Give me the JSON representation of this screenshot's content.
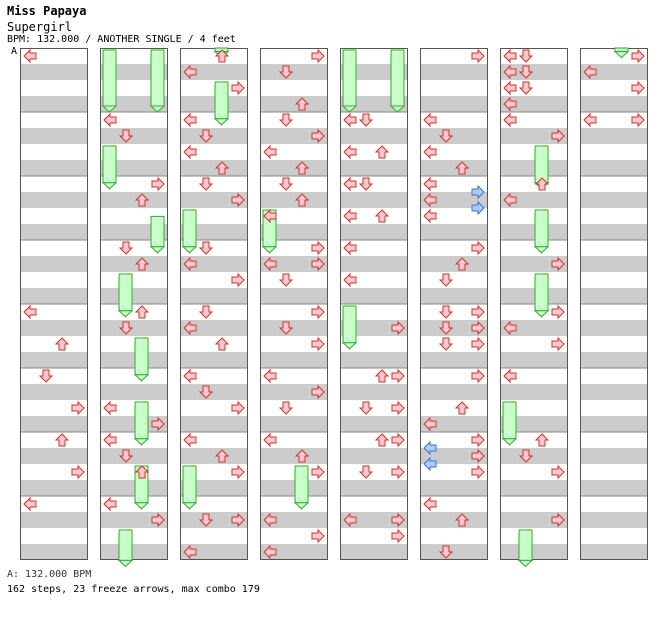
{
  "song": {
    "title": "Miss Papaya",
    "subtitle": "Supergirl",
    "info": "BPM: 132.000 / ANOTHER SINGLE / 4 feet"
  },
  "bpm_marker": {
    "label": "A"
  },
  "footer": {
    "bpm": "A: 132.000 BPM",
    "stats": "162 steps, 23 freeze arrows, max combo 179"
  },
  "colors": {
    "arrow_fill": "#ffc8c8",
    "arrow_stroke": "#cc3333",
    "blue_fill": "#aaccff",
    "blue_stroke": "#3377cc",
    "freeze_fill": "#c8ffc8",
    "freeze_stroke": "#33aa33",
    "stripe": "#cccccc"
  },
  "chart_data": {
    "type": "step-chart",
    "lanes": [
      "left",
      "down",
      "up",
      "right"
    ],
    "measures_per_column": 8,
    "columns": 8,
    "beats_per_measure": 4,
    "notes": [
      {
        "c": 0,
        "m": 0,
        "lane": "left",
        "b": 0
      },
      {
        "c": 0,
        "m": 4,
        "lane": "left",
        "b": 0
      },
      {
        "c": 0,
        "m": 4,
        "lane": "up",
        "b": 2
      },
      {
        "c": 0,
        "m": 5,
        "lane": "down",
        "b": 0
      },
      {
        "c": 0,
        "m": 5,
        "lane": "right",
        "b": 2
      },
      {
        "c": 0,
        "m": 6,
        "lane": "up",
        "b": 0
      },
      {
        "c": 0,
        "m": 6,
        "lane": "right",
        "b": 2
      },
      {
        "c": 0,
        "m": 7,
        "lane": "left",
        "b": 0
      },
      {
        "c": 1,
        "m": 1,
        "lane": "left",
        "b": 0
      },
      {
        "c": 1,
        "m": 1,
        "lane": "down",
        "b": 1
      },
      {
        "c": 1,
        "m": 2,
        "lane": "right",
        "b": 0
      },
      {
        "c": 1,
        "m": 2,
        "lane": "up",
        "b": 1
      },
      {
        "c": 1,
        "m": 3,
        "lane": "down",
        "b": 0
      },
      {
        "c": 1,
        "m": 3,
        "lane": "up",
        "b": 1
      },
      {
        "c": 1,
        "m": 4,
        "lane": "up",
        "b": 0
      },
      {
        "c": 1,
        "m": 4,
        "lane": "down",
        "b": 1
      },
      {
        "c": 1,
        "m": 5,
        "lane": "left",
        "b": 2
      },
      {
        "c": 1,
        "m": 5,
        "lane": "right",
        "b": 3
      },
      {
        "c": 1,
        "m": 6,
        "lane": "left",
        "b": 0
      },
      {
        "c": 1,
        "m": 6,
        "lane": "down",
        "b": 1
      },
      {
        "c": 1,
        "m": 6,
        "lane": "up",
        "b": 2
      },
      {
        "c": 1,
        "m": 7,
        "lane": "left",
        "b": 0
      },
      {
        "c": 1,
        "m": 7,
        "lane": "right",
        "b": 1
      },
      {
        "c": 2,
        "m": 0,
        "lane": "left",
        "b": 1
      },
      {
        "c": 2,
        "m": 0,
        "lane": "up",
        "b": 0
      },
      {
        "c": 2,
        "m": 0,
        "lane": "right",
        "b": 2
      },
      {
        "c": 2,
        "m": 1,
        "lane": "left",
        "b": 0
      },
      {
        "c": 2,
        "m": 1,
        "lane": "down",
        "b": 1
      },
      {
        "c": 2,
        "m": 1,
        "lane": "left",
        "b": 2
      },
      {
        "c": 2,
        "m": 1,
        "lane": "up",
        "b": 3
      },
      {
        "c": 2,
        "m": 2,
        "lane": "down",
        "b": 0
      },
      {
        "c": 2,
        "m": 2,
        "lane": "right",
        "b": 1
      },
      {
        "c": 2,
        "m": 3,
        "lane": "down",
        "b": 0
      },
      {
        "c": 2,
        "m": 3,
        "lane": "left",
        "b": 1
      },
      {
        "c": 2,
        "m": 3,
        "lane": "right",
        "b": 2
      },
      {
        "c": 2,
        "m": 4,
        "lane": "down",
        "b": 0
      },
      {
        "c": 2,
        "m": 4,
        "lane": "left",
        "b": 1
      },
      {
        "c": 2,
        "m": 4,
        "lane": "up",
        "b": 2
      },
      {
        "c": 2,
        "m": 5,
        "lane": "left",
        "b": 0
      },
      {
        "c": 2,
        "m": 5,
        "lane": "down",
        "b": 1
      },
      {
        "c": 2,
        "m": 5,
        "lane": "right",
        "b": 2
      },
      {
        "c": 2,
        "m": 6,
        "lane": "left",
        "b": 0
      },
      {
        "c": 2,
        "m": 6,
        "lane": "up",
        "b": 1
      },
      {
        "c": 2,
        "m": 6,
        "lane": "right",
        "b": 2
      },
      {
        "c": 2,
        "m": 7,
        "lane": "right",
        "b": 1
      },
      {
        "c": 2,
        "m": 7,
        "lane": "down",
        "b": 1
      },
      {
        "c": 2,
        "m": 7,
        "lane": "left",
        "b": 3
      },
      {
        "c": 3,
        "m": 0,
        "lane": "right",
        "b": 0
      },
      {
        "c": 3,
        "m": 0,
        "lane": "down",
        "b": 1
      },
      {
        "c": 3,
        "m": 0,
        "lane": "up",
        "b": 3
      },
      {
        "c": 3,
        "m": 1,
        "lane": "down",
        "b": 0
      },
      {
        "c": 3,
        "m": 1,
        "lane": "right",
        "b": 1
      },
      {
        "c": 3,
        "m": 1,
        "lane": "left",
        "b": 2
      },
      {
        "c": 3,
        "m": 1,
        "lane": "up",
        "b": 3
      },
      {
        "c": 3,
        "m": 2,
        "lane": "down",
        "b": 0
      },
      {
        "c": 3,
        "m": 2,
        "lane": "up",
        "b": 1
      },
      {
        "c": 3,
        "m": 2,
        "lane": "left",
        "b": 2
      },
      {
        "c": 3,
        "m": 3,
        "lane": "right",
        "b": 0
      },
      {
        "c": 3,
        "m": 3,
        "lane": "left",
        "b": 1
      },
      {
        "c": 3,
        "m": 3,
        "lane": "right",
        "b": 1
      },
      {
        "c": 3,
        "m": 3,
        "lane": "down",
        "b": 2
      },
      {
        "c": 3,
        "m": 4,
        "lane": "right",
        "b": 0
      },
      {
        "c": 3,
        "m": 4,
        "lane": "down",
        "b": 1
      },
      {
        "c": 3,
        "m": 4,
        "lane": "right",
        "b": 2
      },
      {
        "c": 3,
        "m": 5,
        "lane": "left",
        "b": 0
      },
      {
        "c": 3,
        "m": 5,
        "lane": "right",
        "b": 1
      },
      {
        "c": 3,
        "m": 5,
        "lane": "down",
        "b": 2
      },
      {
        "c": 3,
        "m": 6,
        "lane": "left",
        "b": 0
      },
      {
        "c": 3,
        "m": 6,
        "lane": "up",
        "b": 1
      },
      {
        "c": 3,
        "m": 6,
        "lane": "right",
        "b": 2
      },
      {
        "c": 3,
        "m": 7,
        "lane": "left",
        "b": 1
      },
      {
        "c": 3,
        "m": 7,
        "lane": "right",
        "b": 2
      },
      {
        "c": 3,
        "m": 7,
        "lane": "left",
        "b": 3
      },
      {
        "c": 4,
        "m": 1,
        "lane": "left",
        "b": 0
      },
      {
        "c": 4,
        "m": 1,
        "lane": "down",
        "b": 0
      },
      {
        "c": 4,
        "m": 1,
        "lane": "left",
        "b": 2
      },
      {
        "c": 4,
        "m": 1,
        "lane": "up",
        "b": 2
      },
      {
        "c": 4,
        "m": 2,
        "lane": "left",
        "b": 0
      },
      {
        "c": 4,
        "m": 2,
        "lane": "down",
        "b": 0
      },
      {
        "c": 4,
        "m": 2,
        "lane": "left",
        "b": 2
      },
      {
        "c": 4,
        "m": 2,
        "lane": "up",
        "b": 2
      },
      {
        "c": 4,
        "m": 3,
        "lane": "left",
        "b": 0
      },
      {
        "c": 4,
        "m": 3,
        "lane": "left",
        "b": 2
      },
      {
        "c": 4,
        "m": 4,
        "lane": "right",
        "b": 1
      },
      {
        "c": 4,
        "m": 5,
        "lane": "up",
        "b": 0
      },
      {
        "c": 4,
        "m": 5,
        "lane": "right",
        "b": 0
      },
      {
        "c": 4,
        "m": 5,
        "lane": "down",
        "b": 2
      },
      {
        "c": 4,
        "m": 5,
        "lane": "right",
        "b": 2
      },
      {
        "c": 4,
        "m": 6,
        "lane": "up",
        "b": 0
      },
      {
        "c": 4,
        "m": 6,
        "lane": "right",
        "b": 0
      },
      {
        "c": 4,
        "m": 6,
        "lane": "down",
        "b": 2
      },
      {
        "c": 4,
        "m": 6,
        "lane": "right",
        "b": 2
      },
      {
        "c": 4,
        "m": 7,
        "lane": "left",
        "b": 1
      },
      {
        "c": 4,
        "m": 7,
        "lane": "right",
        "b": 1
      },
      {
        "c": 4,
        "m": 7,
        "lane": "right",
        "b": 2
      },
      {
        "c": 5,
        "m": 0,
        "lane": "right",
        "b": 0
      },
      {
        "c": 5,
        "m": 1,
        "lane": "left",
        "b": 0
      },
      {
        "c": 5,
        "m": 1,
        "lane": "down",
        "b": 1
      },
      {
        "c": 5,
        "m": 1,
        "lane": "left",
        "b": 2
      },
      {
        "c": 5,
        "m": 1,
        "lane": "up",
        "b": 3
      },
      {
        "c": 5,
        "m": 2,
        "lane": "left",
        "b": 0
      },
      {
        "c": 5,
        "m": 2,
        "lane": "left",
        "b": 1
      },
      {
        "c": 5,
        "m": 2,
        "lane": "left",
        "b": 2
      },
      {
        "c": 5,
        "m": 3,
        "lane": "right",
        "b": 0
      },
      {
        "c": 5,
        "m": 3,
        "lane": "up",
        "b": 1
      },
      {
        "c": 5,
        "m": 3,
        "lane": "down",
        "b": 2
      },
      {
        "c": 5,
        "m": 4,
        "lane": "down",
        "b": 0
      },
      {
        "c": 5,
        "m": 4,
        "lane": "right",
        "b": 0
      },
      {
        "c": 5,
        "m": 4,
        "lane": "down",
        "b": 1
      },
      {
        "c": 5,
        "m": 4,
        "lane": "right",
        "b": 1
      },
      {
        "c": 5,
        "m": 4,
        "lane": "down",
        "b": 2
      },
      {
        "c": 5,
        "m": 4,
        "lane": "right",
        "b": 2
      },
      {
        "c": 5,
        "m": 5,
        "lane": "right",
        "b": 0
      },
      {
        "c": 5,
        "m": 5,
        "lane": "up",
        "b": 2
      },
      {
        "c": 5,
        "m": 5,
        "lane": "left",
        "b": 3
      },
      {
        "c": 5,
        "m": 6,
        "lane": "right",
        "b": 0
      },
      {
        "c": 5,
        "m": 6,
        "lane": "right",
        "b": 1
      },
      {
        "c": 5,
        "m": 6,
        "lane": "right",
        "b": 2
      },
      {
        "c": 5,
        "m": 7,
        "lane": "left",
        "b": 0
      },
      {
        "c": 5,
        "m": 7,
        "lane": "up",
        "b": 1
      },
      {
        "c": 5,
        "m": 7,
        "lane": "down",
        "b": 3
      },
      {
        "c": 6,
        "m": 0,
        "lane": "left",
        "b": 0
      },
      {
        "c": 6,
        "m": 0,
        "lane": "down",
        "b": 0
      },
      {
        "c": 6,
        "m": 0,
        "lane": "left",
        "b": 1
      },
      {
        "c": 6,
        "m": 0,
        "lane": "down",
        "b": 1
      },
      {
        "c": 6,
        "m": 0,
        "lane": "left",
        "b": 2
      },
      {
        "c": 6,
        "m": 0,
        "lane": "down",
        "b": 2
      },
      {
        "c": 6,
        "m": 0,
        "lane": "left",
        "b": 3
      },
      {
        "c": 6,
        "m": 1,
        "lane": "left",
        "b": 0
      },
      {
        "c": 6,
        "m": 1,
        "lane": "right",
        "b": 1
      },
      {
        "c": 6,
        "m": 2,
        "lane": "up",
        "b": 0
      },
      {
        "c": 6,
        "m": 2,
        "lane": "left",
        "b": 1
      },
      {
        "c": 6,
        "m": 3,
        "lane": "right",
        "b": 1
      },
      {
        "c": 6,
        "m": 4,
        "lane": "right",
        "b": 0
      },
      {
        "c": 6,
        "m": 4,
        "lane": "left",
        "b": 1
      },
      {
        "c": 6,
        "m": 4,
        "lane": "right",
        "b": 2
      },
      {
        "c": 6,
        "m": 5,
        "lane": "left",
        "b": 0
      },
      {
        "c": 6,
        "m": 6,
        "lane": "up",
        "b": 0
      },
      {
        "c": 6,
        "m": 6,
        "lane": "down",
        "b": 1
      },
      {
        "c": 6,
        "m": 6,
        "lane": "right",
        "b": 2
      },
      {
        "c": 6,
        "m": 7,
        "lane": "right",
        "b": 1
      }
    ],
    "blue_notes": [
      {
        "c": 5,
        "m": 2,
        "lane": "right",
        "b": 0.5
      },
      {
        "c": 5,
        "m": 2,
        "lane": "right",
        "b": 1.5
      },
      {
        "c": 5,
        "m": 6,
        "lane": "left",
        "b": 0.5
      },
      {
        "c": 5,
        "m": 6,
        "lane": "left",
        "b": 1.5
      }
    ],
    "freezes": [
      {
        "c": 1,
        "lane": "left",
        "start": 0.0,
        "end": 1.0
      },
      {
        "c": 1,
        "lane": "right",
        "start": 0.0,
        "end": 1.0
      },
      {
        "c": 1,
        "lane": "left",
        "start": 1.5,
        "end": 2.2
      },
      {
        "c": 1,
        "lane": "right",
        "start": 2.6,
        "end": 3.2
      },
      {
        "c": 1,
        "lane": "down",
        "start": 3.5,
        "end": 4.2
      },
      {
        "c": 1,
        "lane": "up",
        "start": 4.5,
        "end": 5.2
      },
      {
        "c": 1,
        "lane": "up",
        "start": 5.5,
        "end": 6.2
      },
      {
        "c": 1,
        "lane": "up",
        "start": 6.5,
        "end": 7.2
      },
      {
        "c": 1,
        "lane": "down",
        "start": 7.5,
        "end": 8.1
      },
      {
        "c": 2,
        "lane": "up",
        "start": -0.1,
        "end": 0.15
      },
      {
        "c": 2,
        "lane": "up",
        "start": 0.5,
        "end": 1.2
      },
      {
        "c": 2,
        "lane": "left",
        "start": 2.5,
        "end": 3.2
      },
      {
        "c": 2,
        "lane": "left",
        "start": 6.5,
        "end": 7.2
      },
      {
        "c": 3,
        "lane": "left",
        "start": 2.5,
        "end": 3.2
      },
      {
        "c": 3,
        "lane": "up",
        "start": 6.5,
        "end": 7.2
      },
      {
        "c": 4,
        "lane": "left",
        "start": 0.0,
        "end": 1.0
      },
      {
        "c": 4,
        "lane": "right",
        "start": 0.0,
        "end": 1.0
      },
      {
        "c": 4,
        "lane": "left",
        "start": 4.0,
        "end": 4.7
      },
      {
        "c": 6,
        "lane": "up",
        "start": 1.5,
        "end": 2.2
      },
      {
        "c": 6,
        "lane": "up",
        "start": 2.5,
        "end": 3.2
      },
      {
        "c": 6,
        "lane": "up",
        "start": 3.5,
        "end": 4.2
      },
      {
        "c": 6,
        "lane": "left",
        "start": 5.5,
        "end": 6.2
      },
      {
        "c": 6,
        "lane": "down",
        "start": 7.5,
        "end": 8.1
      }
    ],
    "freezes_col7": [
      {
        "c": 7,
        "lane": "up",
        "start": -0.1,
        "end": 0.15
      }
    ],
    "col7_notes": [
      {
        "c": 7,
        "m": 0,
        "lane": "right",
        "b": 0
      },
      {
        "c": 7,
        "m": 0,
        "lane": "left",
        "b": 1
      },
      {
        "c": 7,
        "m": 0,
        "lane": "right",
        "b": 2
      },
      {
        "c": 7,
        "m": 1,
        "lane": "left",
        "b": 0
      },
      {
        "c": 7,
        "m": 1,
        "lane": "right",
        "b": 0
      }
    ]
  }
}
